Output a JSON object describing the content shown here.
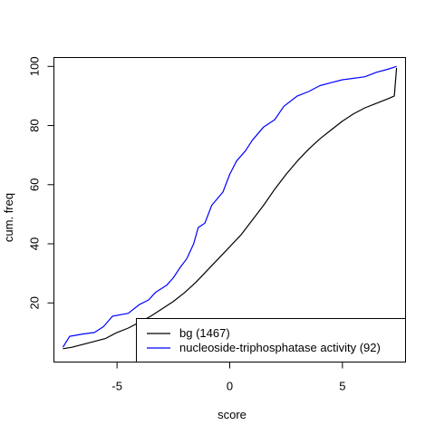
{
  "chart_data": {
    "type": "line",
    "title": "",
    "xlabel": "score",
    "ylabel": "cum. freq",
    "xlim": [
      -7.8,
      7.8
    ],
    "ylim": [
      0,
      103
    ],
    "x_ticks": [
      -5,
      0,
      5
    ],
    "x_tick_labels": [
      "-5",
      "0",
      "5"
    ],
    "y_ticks": [
      20,
      40,
      60,
      80,
      100
    ],
    "y_tick_labels": [
      "20",
      "40",
      "60",
      "80",
      "100"
    ],
    "grid": false,
    "legend_position": "bottom-right",
    "series": [
      {
        "name": "bg (1467)",
        "color": "#000000",
        "points": [
          [
            -7.4,
            4.5
          ],
          [
            -7.0,
            5.0
          ],
          [
            -6.5,
            6.0
          ],
          [
            -6.0,
            7.0
          ],
          [
            -5.5,
            8.0
          ],
          [
            -5.0,
            10.0
          ],
          [
            -4.5,
            11.5
          ],
          [
            -4.0,
            13.5
          ],
          [
            -3.5,
            15.5
          ],
          [
            -3.0,
            18.0
          ],
          [
            -2.5,
            20.5
          ],
          [
            -2.0,
            23.5
          ],
          [
            -1.5,
            27.0
          ],
          [
            -1.0,
            31.0
          ],
          [
            -0.5,
            35.0
          ],
          [
            0.0,
            39.0
          ],
          [
            0.5,
            43.0
          ],
          [
            1.0,
            48.0
          ],
          [
            1.5,
            53.0
          ],
          [
            2.0,
            58.5
          ],
          [
            2.5,
            63.5
          ],
          [
            3.0,
            68.0
          ],
          [
            3.5,
            72.0
          ],
          [
            4.0,
            75.5
          ],
          [
            4.5,
            78.5
          ],
          [
            5.0,
            81.5
          ],
          [
            5.5,
            84.0
          ],
          [
            6.0,
            86.0
          ],
          [
            6.5,
            87.5
          ],
          [
            7.0,
            89.0
          ],
          [
            7.3,
            90.0
          ],
          [
            7.4,
            99.5
          ]
        ]
      },
      {
        "name": "nucleoside-triphosphatase activity (92)",
        "color": "#0000ff",
        "points": [
          [
            -7.4,
            5.0
          ],
          [
            -7.1,
            8.7
          ],
          [
            -6.5,
            9.5
          ],
          [
            -6.0,
            10.0
          ],
          [
            -5.6,
            12.0
          ],
          [
            -5.2,
            15.5
          ],
          [
            -4.5,
            16.5
          ],
          [
            -4.0,
            19.5
          ],
          [
            -3.6,
            21.0
          ],
          [
            -3.3,
            23.5
          ],
          [
            -2.8,
            26.0
          ],
          [
            -2.5,
            28.5
          ],
          [
            -2.2,
            32.0
          ],
          [
            -1.9,
            35.0
          ],
          [
            -1.6,
            40.0
          ],
          [
            -1.4,
            45.5
          ],
          [
            -1.1,
            47.0
          ],
          [
            -0.8,
            53.0
          ],
          [
            -0.3,
            57.5
          ],
          [
            0.0,
            63.5
          ],
          [
            0.3,
            68.0
          ],
          [
            0.7,
            71.5
          ],
          [
            1.0,
            75.0
          ],
          [
            1.5,
            79.5
          ],
          [
            2.0,
            82.0
          ],
          [
            2.4,
            86.5
          ],
          [
            3.0,
            90.0
          ],
          [
            3.5,
            91.5
          ],
          [
            4.0,
            93.5
          ],
          [
            4.5,
            94.5
          ],
          [
            5.0,
            95.5
          ],
          [
            6.0,
            96.5
          ],
          [
            6.5,
            98.0
          ],
          [
            7.0,
            99.0
          ],
          [
            7.4,
            100.0
          ]
        ]
      }
    ],
    "legend": [
      "bg (1467)",
      "nucleoside-triphosphatase activity (92)"
    ]
  }
}
